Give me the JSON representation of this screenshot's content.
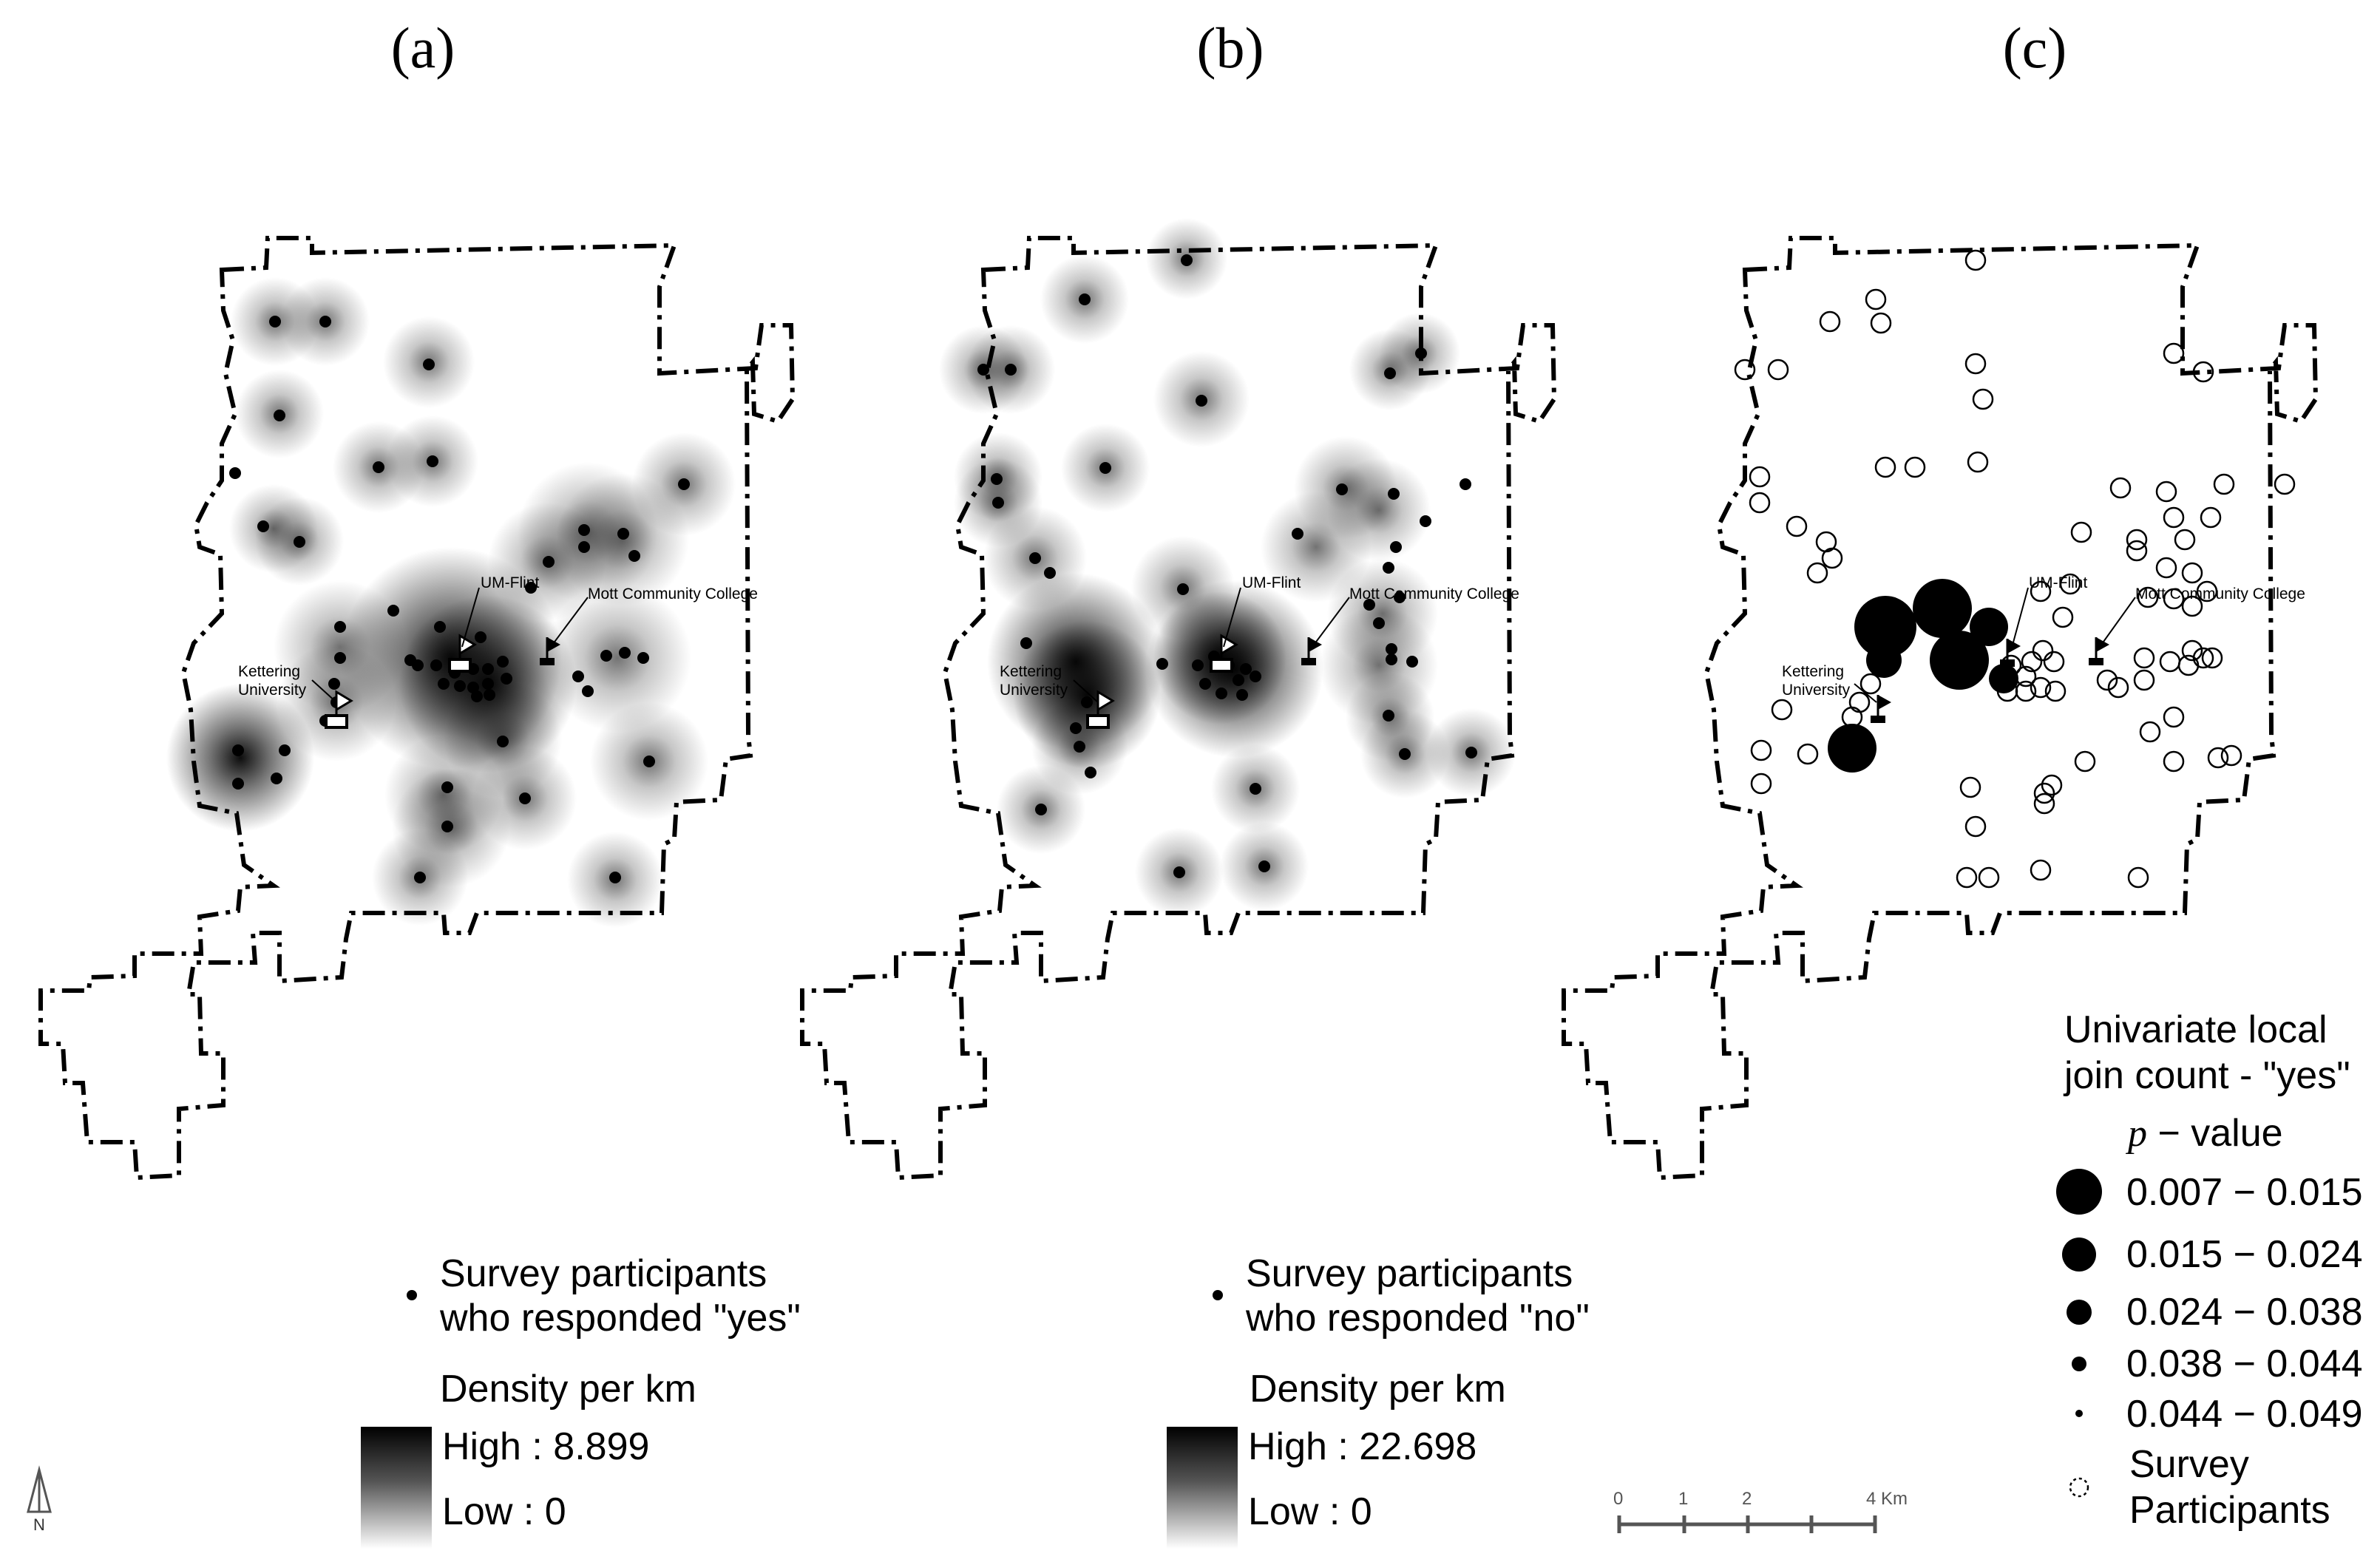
{
  "panels": {
    "a": {
      "label": "(a)",
      "participants_label_line1": "Survey participants",
      "participants_label_line2": "who responded \"yes\"",
      "density_title": "Density per km",
      "high": "High : 8.899",
      "low": "Low : 0"
    },
    "b": {
      "label": "(b)",
      "participants_label_line1": "Survey participants",
      "participants_label_line2": "who responded \"no\"",
      "density_title": "Density per km",
      "high": "High : 22.698",
      "low": "Low : 0"
    },
    "c": {
      "label": "(c)"
    }
  },
  "places": {
    "um_flint": "UM-Flint",
    "mott": "Mott Community College",
    "kettering_1": "Kettering",
    "kettering_2": "University"
  },
  "legend_c": {
    "title_line1": "Univariate local",
    "title_line2": "join count - \"yes\"",
    "pvalue_italic": "p",
    "pvalue_rest": " − value",
    "classes": [
      "0.007 − 0.015",
      "0.015 − 0.024",
      "0.024 − 0.038",
      "0.038 − 0.044",
      "0.044 − 0.049"
    ],
    "survey_line1": "Survey",
    "survey_line2": "Participants"
  },
  "scale_bar": {
    "ticks": [
      "0",
      "1",
      "2",
      "4 Km"
    ]
  },
  "north": "N"
}
